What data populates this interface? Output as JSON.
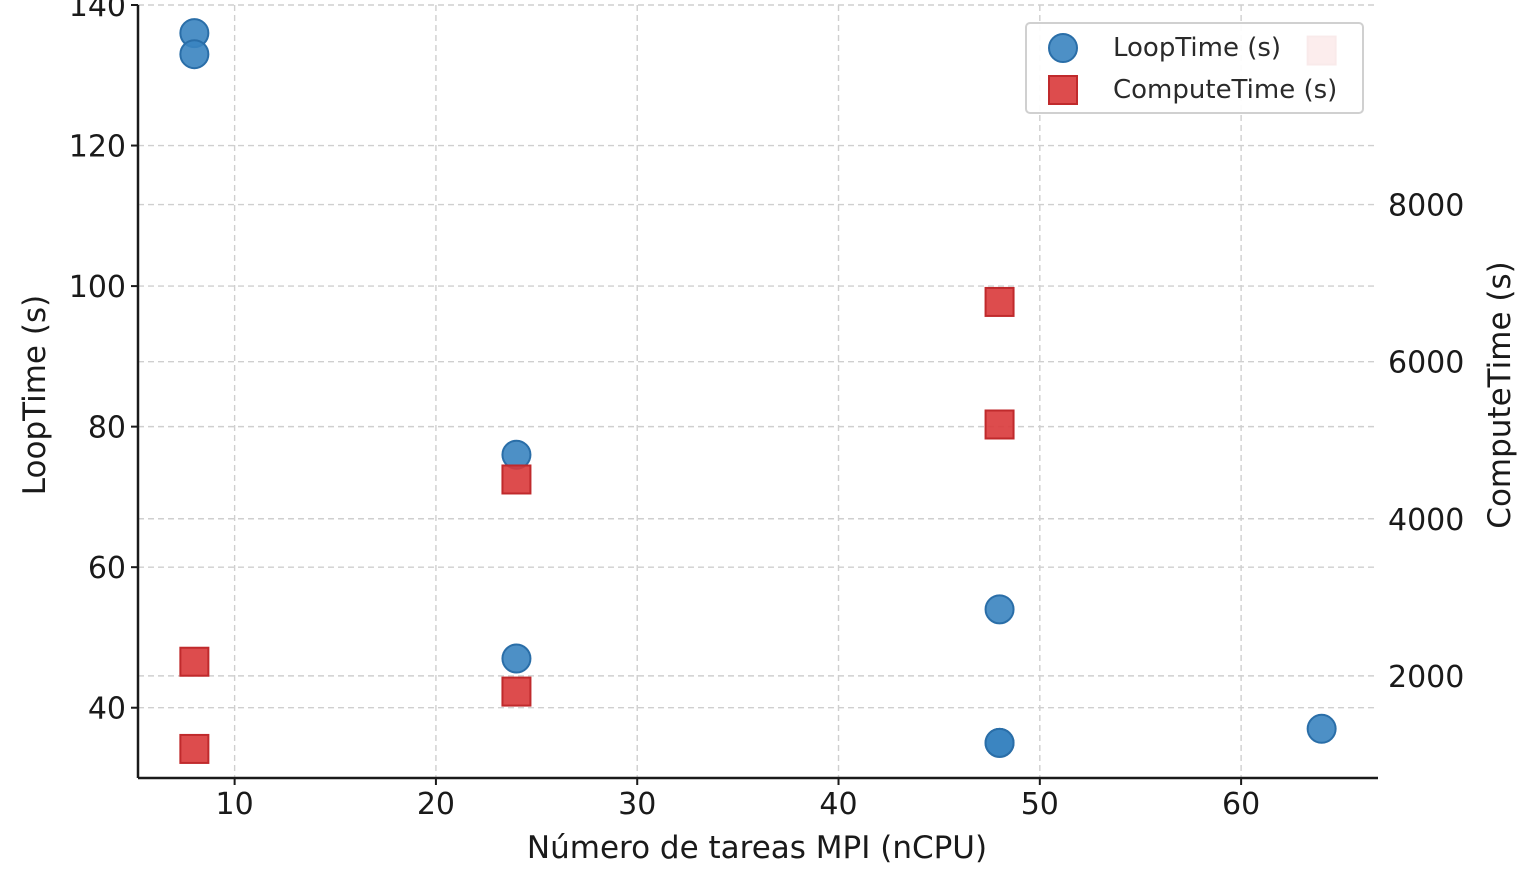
{
  "chart_data": {
    "type": "scatter",
    "title": "",
    "xlabel": "Número de tareas MPI (nCPU)",
    "ylabel": "LoopTime (s)",
    "y2label": "ComputeTime (s)",
    "xlim": [
      5.2,
      66.8
    ],
    "ylim": [
      30,
      140
    ],
    "y2lim": [
      700,
      10540
    ],
    "xticks": [
      10,
      20,
      30,
      40,
      50,
      60
    ],
    "yticks": [
      40,
      60,
      80,
      100,
      120,
      140
    ],
    "y2ticks": [
      2000,
      4000,
      6000,
      8000
    ],
    "grid": true,
    "legend_position": "top-right",
    "series": [
      {
        "name": "LoopTime (s)",
        "axis": "left",
        "marker": "circle",
        "color": "#3a84c0",
        "x": [
          8,
          8,
          24,
          24,
          48,
          48,
          48,
          64
        ],
        "y": [
          136,
          133,
          76,
          47,
          54,
          35,
          35,
          37
        ]
      },
      {
        "name": "ComputeTime (s)",
        "axis": "right",
        "marker": "square",
        "color": "#d9383a",
        "x": [
          8,
          8,
          24,
          24,
          48,
          48,
          64
        ],
        "y": [
          2180,
          1070,
          4500,
          1800,
          6760,
          5200,
          9960
        ]
      }
    ]
  }
}
